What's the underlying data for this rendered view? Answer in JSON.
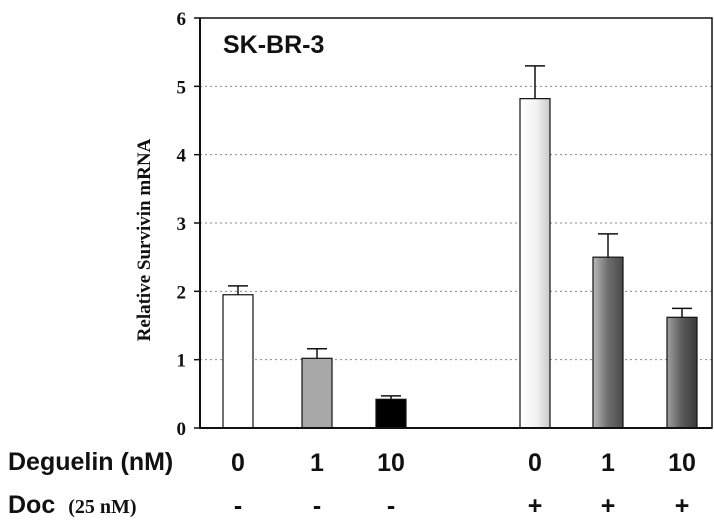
{
  "chart_data": {
    "type": "bar",
    "title": "SK-BR-3",
    "ylabel": "Relative Survivin mRNA",
    "ylim": [
      0,
      6
    ],
    "yticks": [
      "0",
      "1",
      "2",
      "3",
      "4",
      "5",
      "6"
    ],
    "grid": "horizontal-dotted",
    "bars": [
      {
        "deguelin": "0",
        "doc": "-",
        "value": 1.95,
        "error": 0.13,
        "fill": "#ffffff",
        "gradient": false
      },
      {
        "deguelin": "1",
        "doc": "-",
        "value": 1.02,
        "error": 0.14,
        "fill": "#a8a8a8",
        "gradient": false
      },
      {
        "deguelin": "10",
        "doc": "-",
        "value": 0.42,
        "error": 0.05,
        "fill": "#000000",
        "gradient": false
      },
      {
        "deguelin": "0",
        "doc": "+",
        "value": 4.82,
        "error": 0.48,
        "fill": "#e6e6e6",
        "gradient": true
      },
      {
        "deguelin": "1",
        "doc": "+",
        "value": 2.5,
        "error": 0.34,
        "fill": "#8c8c8c",
        "gradient": true
      },
      {
        "deguelin": "10",
        "doc": "+",
        "value": 1.62,
        "error": 0.13,
        "fill": "#6e6e6e",
        "gradient": true
      }
    ],
    "row_labels": {
      "deguelin": "Deguelin (nM)",
      "doc_main": "Doc",
      "doc_unit": "(25 nM)"
    }
  }
}
